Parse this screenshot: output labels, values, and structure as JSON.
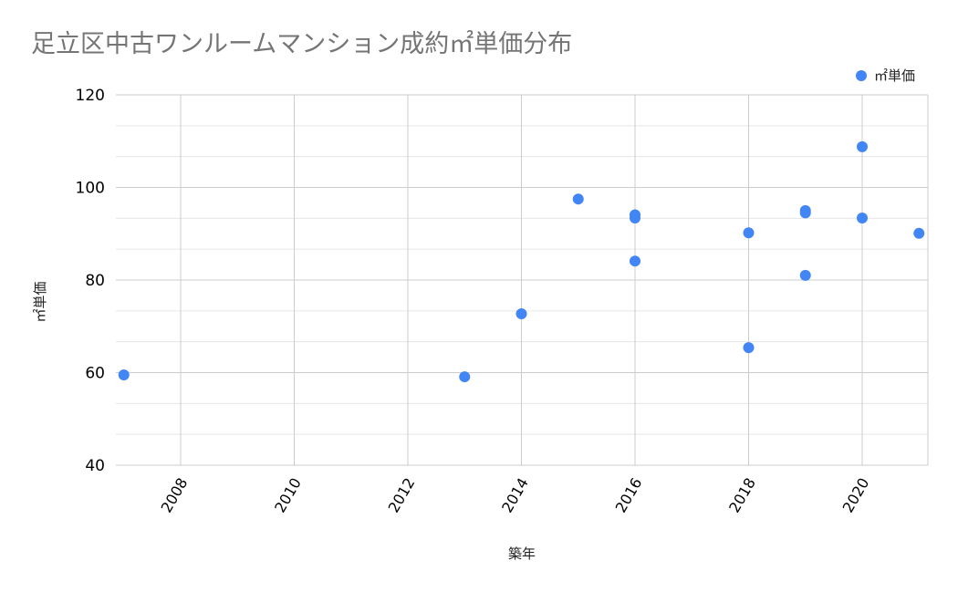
{
  "title": "足立区中古ワンルームマンション成約㎡単価分布",
  "legend": {
    "label": "㎡単価",
    "color": "#4285f4"
  },
  "axes": {
    "x_title": "築年",
    "y_title": "㎡単価",
    "y_ticks": [
      "120",
      "100",
      "80",
      "60",
      "40"
    ],
    "x_ticks": [
      "2008",
      "2010",
      "2012",
      "2014",
      "2016",
      "2018",
      "2020"
    ]
  },
  "chart_data": {
    "type": "scatter",
    "title": "足立区中古ワンルームマンション成約㎡単価分布",
    "xlabel": "築年",
    "ylabel": "㎡単価",
    "xlim": [
      2007,
      2021
    ],
    "ylim": [
      40,
      120
    ],
    "x_ticks": [
      2008,
      2010,
      2012,
      2014,
      2016,
      2018,
      2020
    ],
    "y_ticks": [
      40,
      60,
      80,
      100,
      120
    ],
    "grid": true,
    "legend_position": "top-right",
    "series": [
      {
        "name": "㎡単価",
        "color": "#4285f4",
        "points": [
          {
            "x": 2007,
            "y": 59.5
          },
          {
            "x": 2013,
            "y": 59.1
          },
          {
            "x": 2014,
            "y": 72.7
          },
          {
            "x": 2015,
            "y": 97.5
          },
          {
            "x": 2016,
            "y": 94.1
          },
          {
            "x": 2016,
            "y": 93.4
          },
          {
            "x": 2016,
            "y": 84.1
          },
          {
            "x": 2018,
            "y": 90.2
          },
          {
            "x": 2018,
            "y": 65.4
          },
          {
            "x": 2019,
            "y": 95.0
          },
          {
            "x": 2019,
            "y": 94.5
          },
          {
            "x": 2019,
            "y": 81.0
          },
          {
            "x": 2020,
            "y": 108.8
          },
          {
            "x": 2020,
            "y": 93.4
          },
          {
            "x": 2021,
            "y": 90.1
          }
        ]
      }
    ]
  }
}
